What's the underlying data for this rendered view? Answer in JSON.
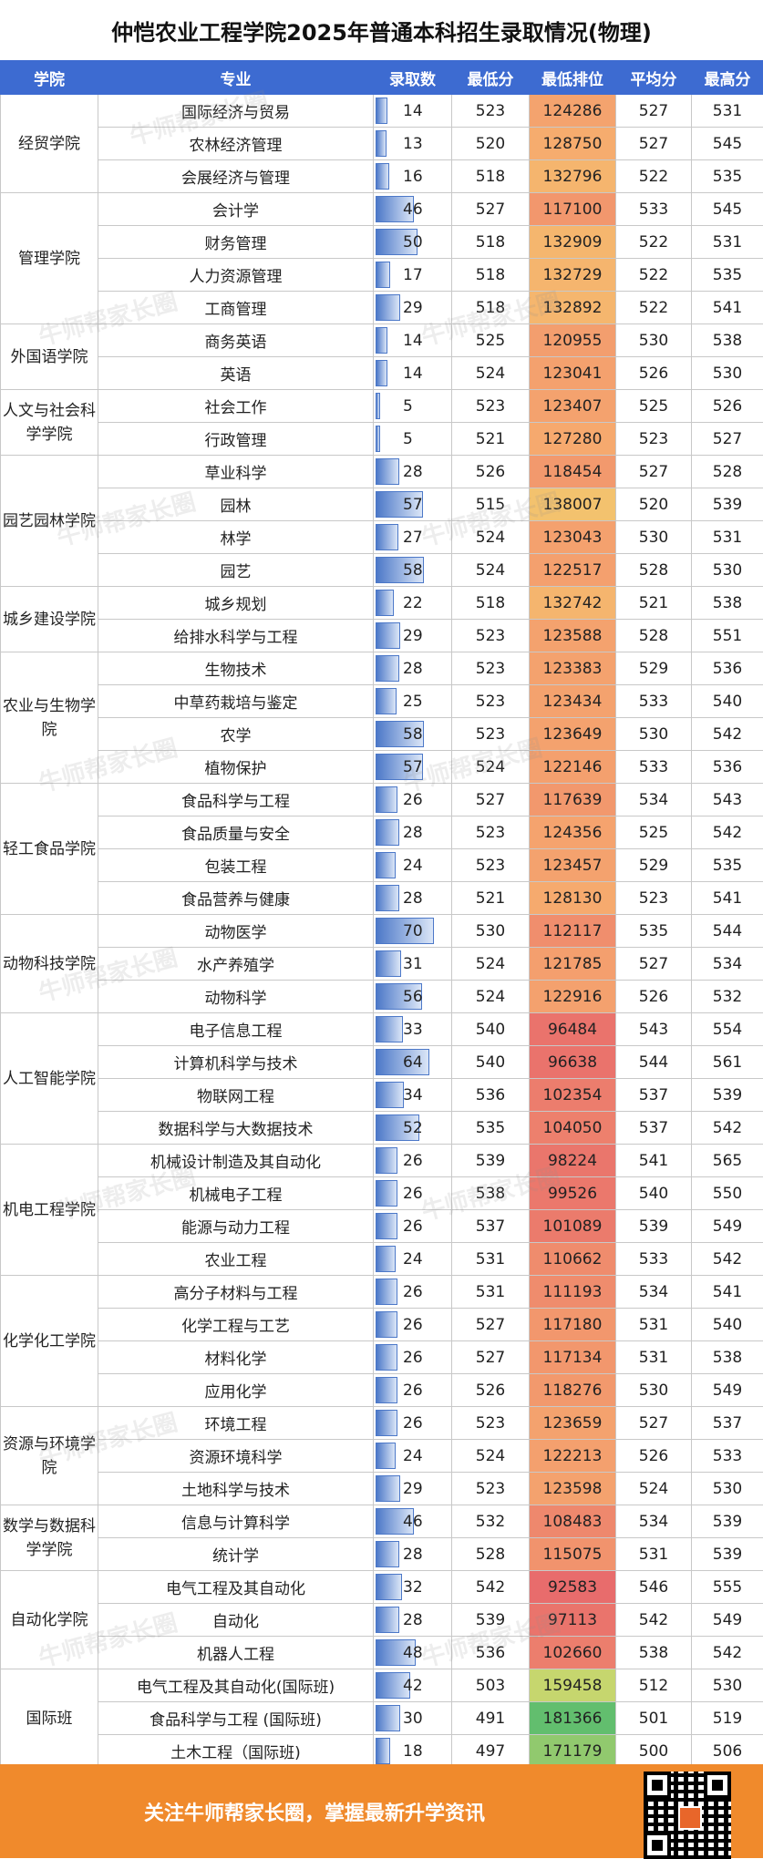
{
  "title": "仲恺农业工程学院2025年普通本科招生录取情况(物理)",
  "headers": [
    "学院",
    "专业",
    "录取数",
    "最低分",
    "最低排位",
    "平均分",
    "最高分"
  ],
  "colors": {
    "header_bg": "#3d6bd1",
    "footer_bg": "#f08a2c",
    "bar": "#4c78c8"
  },
  "watermark": "牛师帮家长圈",
  "footer": {
    "text": "关注牛师帮家长圈，掌握最新升学资讯"
  },
  "colleges": [
    {
      "name": "经贸学院",
      "rows": [
        [
          "国际经济与贸易",
          "14",
          "523",
          "124286",
          "527",
          "531"
        ],
        [
          "农林经济管理",
          "13",
          "520",
          "128750",
          "527",
          "545"
        ],
        [
          "会展经济与管理",
          "16",
          "518",
          "132796",
          "522",
          "535"
        ]
      ]
    },
    {
      "name": "管理学院",
      "rows": [
        [
          "会计学",
          "46",
          "527",
          "117100",
          "533",
          "545"
        ],
        [
          "财务管理",
          "50",
          "518",
          "132909",
          "522",
          "531"
        ],
        [
          "人力资源管理",
          "17",
          "518",
          "132729",
          "522",
          "535"
        ],
        [
          "工商管理",
          "29",
          "518",
          "132892",
          "522",
          "541"
        ]
      ]
    },
    {
      "name": "外国语学院",
      "rows": [
        [
          "商务英语",
          "14",
          "525",
          "120955",
          "530",
          "538"
        ],
        [
          "英语",
          "14",
          "524",
          "123041",
          "526",
          "530"
        ]
      ]
    },
    {
      "name": "人文与社会科学学院",
      "rows": [
        [
          "社会工作",
          "5",
          "523",
          "123407",
          "525",
          "526"
        ],
        [
          "行政管理",
          "5",
          "521",
          "127280",
          "523",
          "527"
        ]
      ]
    },
    {
      "name": "园艺园林学院",
      "rows": [
        [
          "草业科学",
          "28",
          "526",
          "118454",
          "527",
          "528"
        ],
        [
          "园林",
          "57",
          "515",
          "138007",
          "520",
          "539"
        ],
        [
          "林学",
          "27",
          "524",
          "123043",
          "530",
          "531"
        ],
        [
          "园艺",
          "58",
          "524",
          "122517",
          "528",
          "530"
        ]
      ]
    },
    {
      "name": "城乡建设学院",
      "rows": [
        [
          "城乡规划",
          "22",
          "518",
          "132742",
          "521",
          "538"
        ],
        [
          "给排水科学与工程",
          "29",
          "523",
          "123588",
          "528",
          "551"
        ]
      ]
    },
    {
      "name": "农业与生物学院",
      "rows": [
        [
          "生物技术",
          "28",
          "523",
          "123383",
          "529",
          "536"
        ],
        [
          "中草药栽培与鉴定",
          "25",
          "523",
          "123434",
          "533",
          "540"
        ],
        [
          "农学",
          "58",
          "523",
          "123649",
          "530",
          "542"
        ],
        [
          "植物保护",
          "57",
          "524",
          "122146",
          "533",
          "536"
        ]
      ]
    },
    {
      "name": "轻工食品学院",
      "rows": [
        [
          "食品科学与工程",
          "26",
          "527",
          "117639",
          "534",
          "543"
        ],
        [
          "食品质量与安全",
          "28",
          "523",
          "124356",
          "525",
          "542"
        ],
        [
          "包装工程",
          "24",
          "523",
          "123457",
          "529",
          "535"
        ],
        [
          "食品营养与健康",
          "28",
          "521",
          "128130",
          "523",
          "541"
        ]
      ]
    },
    {
      "name": "动物科技学院",
      "rows": [
        [
          "动物医学",
          "70",
          "530",
          "112117",
          "535",
          "544"
        ],
        [
          "水产养殖学",
          "31",
          "524",
          "121785",
          "527",
          "534"
        ],
        [
          "动物科学",
          "56",
          "524",
          "122916",
          "526",
          "532"
        ]
      ]
    },
    {
      "name": "人工智能学院",
      "rows": [
        [
          "电子信息工程",
          "33",
          "540",
          "96484",
          "543",
          "554"
        ],
        [
          "计算机科学与技术",
          "64",
          "540",
          "96638",
          "544",
          "561"
        ],
        [
          "物联网工程",
          "34",
          "536",
          "102354",
          "537",
          "539"
        ],
        [
          "数据科学与大数据技术",
          "52",
          "535",
          "104050",
          "537",
          "542"
        ]
      ]
    },
    {
      "name": "机电工程学院",
      "rows": [
        [
          "机械设计制造及其自动化",
          "26",
          "539",
          "98224",
          "541",
          "565"
        ],
        [
          "机械电子工程",
          "26",
          "538",
          "99526",
          "540",
          "550"
        ],
        [
          "能源与动力工程",
          "26",
          "537",
          "101089",
          "539",
          "549"
        ],
        [
          "农业工程",
          "24",
          "531",
          "110662",
          "533",
          "542"
        ]
      ]
    },
    {
      "name": "化学化工学院",
      "rows": [
        [
          "高分子材料与工程",
          "26",
          "531",
          "111193",
          "534",
          "541"
        ],
        [
          "化学工程与工艺",
          "26",
          "527",
          "117180",
          "531",
          "540"
        ],
        [
          "材料化学",
          "26",
          "527",
          "117134",
          "531",
          "538"
        ],
        [
          "应用化学",
          "26",
          "526",
          "118276",
          "530",
          "549"
        ]
      ]
    },
    {
      "name": "资源与环境学院",
      "rows": [
        [
          "环境工程",
          "26",
          "523",
          "123659",
          "527",
          "537"
        ],
        [
          "资源环境科学",
          "24",
          "524",
          "122213",
          "526",
          "533"
        ],
        [
          "土地科学与技术",
          "29",
          "523",
          "123598",
          "524",
          "530"
        ]
      ]
    },
    {
      "name": "数学与数据科学学院",
      "rows": [
        [
          "信息与计算科学",
          "46",
          "532",
          "108483",
          "534",
          "539"
        ],
        [
          "统计学",
          "28",
          "528",
          "115075",
          "531",
          "539"
        ]
      ]
    },
    {
      "name": "自动化学院",
      "rows": [
        [
          "电气工程及其自动化",
          "32",
          "542",
          "92583",
          "546",
          "555"
        ],
        [
          "自动化",
          "28",
          "539",
          "97113",
          "542",
          "549"
        ],
        [
          "机器人工程",
          "48",
          "536",
          "102660",
          "538",
          "542"
        ]
      ]
    },
    {
      "name": "国际班",
      "rows": [
        [
          "电气工程及其自动化(国际班)",
          "42",
          "503",
          "159458",
          "512",
          "530"
        ],
        [
          "食品科学与工程 (国际班)",
          "30",
          "491",
          "181366",
          "501",
          "519"
        ],
        [
          "土木工程（国际班)",
          "18",
          "497",
          "171179",
          "500",
          "506"
        ]
      ]
    }
  ]
}
